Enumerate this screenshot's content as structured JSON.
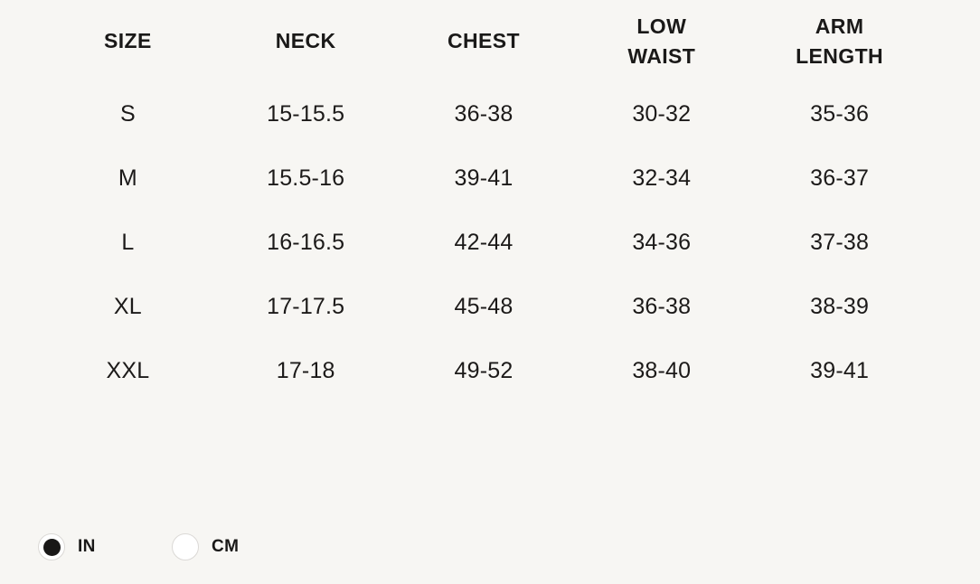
{
  "colors": {
    "background": "#f7f6f3",
    "text": "#1a1918",
    "radio_selected_fill": "#191817",
    "radio_border": "#dbd9d6"
  },
  "table": {
    "headers": [
      "SIZE",
      "NECK",
      "CHEST",
      "LOW WAIST",
      "ARM LENGTH"
    ],
    "rows": [
      [
        "S",
        "15-15.5",
        "36-38",
        "30-32",
        "35-36"
      ],
      [
        "M",
        "15.5-16",
        "39-41",
        "32-34",
        "36-37"
      ],
      [
        "L",
        "16-16.5",
        "42-44",
        "34-36",
        "37-38"
      ],
      [
        "XL",
        "17-17.5",
        "45-48",
        "36-38",
        "38-39"
      ],
      [
        "XXL",
        "17-18",
        "49-52",
        "38-40",
        "39-41"
      ]
    ]
  },
  "units": {
    "options": [
      {
        "label": "IN",
        "selected": true
      },
      {
        "label": "CM",
        "selected": false
      }
    ]
  }
}
